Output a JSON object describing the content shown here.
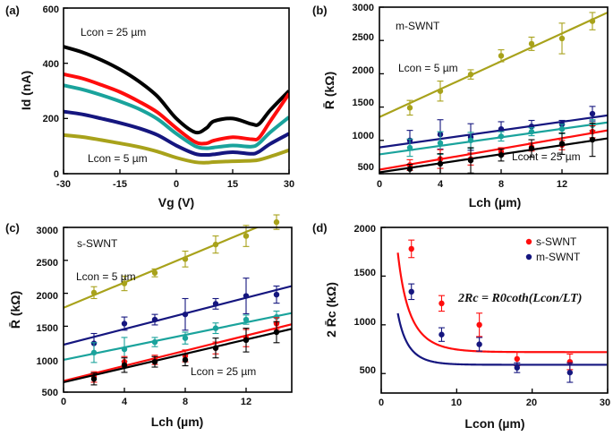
{
  "colors": {
    "black": "#000000",
    "red": "#ff0d0d",
    "teal": "#1aa39c",
    "navy": "#15167f",
    "olive": "#a8a21b"
  },
  "chart_data": [
    {
      "type": "line",
      "label": "(a)",
      "xlabel": "Vg (V)",
      "ylabel": "Id (nA)",
      "xlim": [
        -30,
        30
      ],
      "ylim": [
        0,
        600
      ],
      "xticks": [
        "-30",
        "-15",
        "0",
        "15",
        "30"
      ],
      "yticks": [
        "0",
        "200",
        "400",
        "600"
      ],
      "annotations": [
        "Lcon = 25 µm",
        "Lcon = 5 µm"
      ],
      "x": [
        -30,
        -25,
        -20,
        -15,
        -10,
        -5,
        0,
        5,
        8,
        10,
        15,
        20,
        22,
        25,
        30
      ],
      "series": [
        {
          "name": "Lcon = 25 µm",
          "color": "black",
          "values": [
            460,
            440,
            412,
            378,
            335,
            280,
            200,
            150,
            165,
            190,
            200,
            180,
            180,
            230,
            300
          ]
        },
        {
          "name": "red",
          "color": "red",
          "values": [
            360,
            345,
            322,
            296,
            262,
            222,
            165,
            115,
            110,
            120,
            132,
            125,
            130,
            190,
            290
          ]
        },
        {
          "name": "teal",
          "color": "teal",
          "values": [
            320,
            305,
            285,
            262,
            235,
            198,
            145,
            100,
            92,
            95,
            102,
            98,
            110,
            150,
            205
          ]
        },
        {
          "name": "navy",
          "color": "navy",
          "values": [
            225,
            215,
            200,
            184,
            165,
            140,
            102,
            72,
            68,
            70,
            78,
            72,
            80,
            108,
            145
          ]
        },
        {
          "name": "Lcon = 5 µm",
          "color": "olive",
          "values": [
            140,
            133,
            122,
            110,
            97,
            80,
            58,
            42,
            40,
            42,
            45,
            47,
            50,
            62,
            85
          ]
        }
      ]
    },
    {
      "type": "scatter",
      "label": "(b)",
      "xlabel": "Lch (µm)",
      "ylabel": "R̄ (kΩ)",
      "xlim": [
        0,
        15
      ],
      "ylim": [
        500,
        3000
      ],
      "xticks": [
        "0",
        "4",
        "8",
        "12"
      ],
      "yticks": [
        "500",
        "1000",
        "1500",
        "2000",
        "2500",
        "3000"
      ],
      "annotations": [
        "m-SWNT",
        "Lcon = 5 µm",
        "Lcont = 25 µm"
      ],
      "x": [
        2,
        4,
        6,
        8,
        10,
        12,
        14
      ],
      "series": [
        {
          "name": "Lcon = 5 µm",
          "color": "olive",
          "values": [
            1490,
            1740,
            1990,
            2270,
            2450,
            2530,
            2790
          ],
          "errors": [
            110,
            150,
            70,
            90,
            100,
            230,
            130
          ],
          "fit": [
            1350,
            2920
          ]
        },
        {
          "name": "navy",
          "color": "navy",
          "values": [
            1000,
            1090,
            1050,
            1170,
            1210,
            1240,
            1400
          ],
          "errors": [
            150,
            220,
            200,
            110,
            90,
            60,
            110
          ],
          "fit": [
            895,
            1375
          ]
        },
        {
          "name": "teal",
          "color": "teal",
          "values": [
            890,
            960,
            1000,
            1060,
            1130,
            1170,
            1230
          ],
          "errors": [
            130,
            170,
            120,
            70,
            60,
            70,
            80
          ],
          "fit": [
            790,
            1270
          ]
        },
        {
          "name": "red",
          "color": "red",
          "values": [
            630,
            720,
            720,
            830,
            900,
            930,
            1130
          ],
          "errors": [
            80,
            140,
            90,
            60,
            60,
            70,
            90
          ],
          "fit": [
            560,
            1150
          ]
        },
        {
          "name": "Lcont = 25 µm",
          "color": "black",
          "values": [
            570,
            650,
            700,
            780,
            880,
            950,
            1010
          ],
          "errors": [
            70,
            150,
            190,
            90,
            130,
            160,
            250
          ],
          "fit": [
            520,
            1030
          ]
        }
      ]
    },
    {
      "type": "scatter",
      "label": "(c)",
      "xlabel": "Lch (µm)",
      "ylabel": "R̄ (kΩ)",
      "xlim": [
        0,
        15
      ],
      "ylim": [
        500,
        3000
      ],
      "xticks": [
        "0",
        "4",
        "8",
        "12"
      ],
      "yticks": [
        "500",
        "1000",
        "1500",
        "2000",
        "2500",
        "3000"
      ],
      "annotations": [
        "s-SWNT",
        "Lcon = 5 µm",
        "Lcon = 25 µm"
      ],
      "x": [
        2,
        4,
        6,
        8,
        10,
        12,
        14
      ],
      "series": [
        {
          "name": "Lcon = 5 µm",
          "color": "olive",
          "values": [
            2010,
            2150,
            2310,
            2520,
            2740,
            2870,
            3080
          ],
          "errors": [
            90,
            110,
            60,
            120,
            130,
            160,
            110
          ],
          "fit": [
            1780,
            3220
          ]
        },
        {
          "name": "navy",
          "color": "navy",
          "values": [
            1240,
            1540,
            1600,
            1680,
            1840,
            1960,
            1980
          ],
          "errors": [
            150,
            100,
            80,
            240,
            80,
            270,
            130
          ],
          "fit": [
            1220,
            2110
          ]
        },
        {
          "name": "teal",
          "color": "teal",
          "values": [
            1100,
            1150,
            1260,
            1320,
            1470,
            1600,
            1640
          ],
          "errors": [
            150,
            180,
            70,
            90,
            80,
            70,
            90
          ],
          "fit": [
            990,
            1700
          ]
        },
        {
          "name": "red",
          "color": "red",
          "values": [
            730,
            960,
            990,
            1050,
            1170,
            1320,
            1540
          ],
          "errors": [
            80,
            80,
            70,
            90,
            90,
            130,
            90
          ],
          "fit": [
            670,
            1530
          ]
        },
        {
          "name": "Lcon = 25 µm",
          "color": "black",
          "values": [
            700,
            910,
            960,
            990,
            1170,
            1290,
            1410
          ],
          "errors": [
            90,
            110,
            80,
            90,
            150,
            180,
            160
          ],
          "fit": [
            650,
            1460
          ]
        }
      ]
    },
    {
      "type": "scatter",
      "label": "(d)",
      "xlabel": "Lcon (µm)",
      "ylabel": "2 R̄c (kΩ)",
      "xlim": [
        0,
        30
      ],
      "ylim": [
        300,
        2000
      ],
      "xticks": [
        "0",
        "10",
        "20",
        "30"
      ],
      "yticks": [
        "500",
        "1000",
        "1500",
        "2000"
      ],
      "legend": [
        "s-SWNT",
        "m-SWNT"
      ],
      "equation": "2Rc = R0coth(Lcon/LT)",
      "series": [
        {
          "name": "s-SWNT",
          "color": "red",
          "x": [
            4,
            8,
            13,
            18,
            25
          ],
          "values": [
            1780,
            1220,
            1000,
            650,
            620
          ],
          "errors": [
            90,
            80,
            120,
            70,
            80
          ],
          "fit": {
            "R0": 720,
            "LT": 5.0
          }
        },
        {
          "name": "m-SWNT",
          "color": "navy",
          "x": [
            4,
            8,
            13,
            18,
            25
          ],
          "values": [
            1340,
            900,
            800,
            560,
            510
          ],
          "errors": [
            80,
            70,
            70,
            50,
            100
          ],
          "fit": {
            "R0": 590,
            "LT": 3.75
          }
        }
      ]
    }
  ]
}
